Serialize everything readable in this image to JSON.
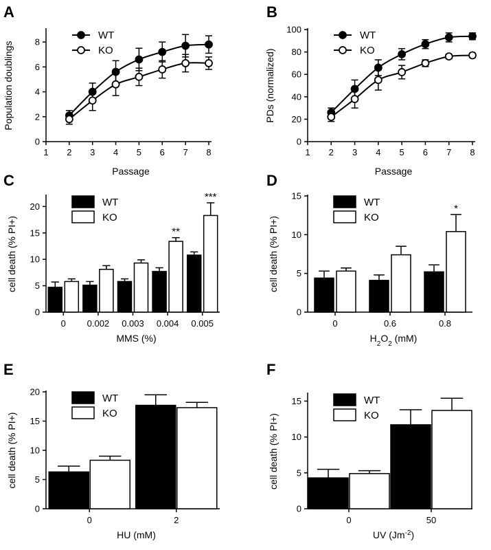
{
  "figure": {
    "panels": [
      "A",
      "B",
      "C",
      "D",
      "E",
      "F"
    ]
  },
  "chart_data": [
    {
      "panel": "A",
      "type": "line",
      "xlabel": "Passage",
      "ylabel": "Population doublings",
      "xlim": [
        1,
        8
      ],
      "ylim": [
        0,
        9
      ],
      "xticks": [
        1,
        2,
        3,
        4,
        5,
        6,
        7,
        8
      ],
      "yticks": [
        0,
        2,
        4,
        6,
        8
      ],
      "legend": "top-left",
      "x": [
        2,
        3,
        4,
        5,
        6,
        7,
        8
      ],
      "series": [
        {
          "name": "WT",
          "marker": "filled",
          "values": [
            2.1,
            4.0,
            5.6,
            6.6,
            7.2,
            7.7,
            7.8
          ],
          "errors": [
            0.4,
            0.7,
            0.9,
            0.9,
            0.8,
            0.9,
            0.7
          ]
        },
        {
          "name": "KO",
          "marker": "open",
          "values": [
            1.8,
            3.3,
            4.6,
            5.2,
            5.8,
            6.3,
            6.3
          ],
          "errors": [
            0.4,
            0.8,
            0.9,
            0.7,
            0.7,
            0.7,
            0.5
          ]
        }
      ]
    },
    {
      "panel": "B",
      "type": "line",
      "xlabel": "Passage",
      "ylabel": "PDs (normalized)",
      "xlim": [
        1,
        8
      ],
      "ylim": [
        0,
        100
      ],
      "xticks": [
        1,
        2,
        3,
        4,
        5,
        6,
        7,
        8
      ],
      "yticks": [
        0,
        20,
        40,
        60,
        80,
        100
      ],
      "legend": "top-left",
      "x": [
        2,
        3,
        4,
        5,
        6,
        7,
        8
      ],
      "series": [
        {
          "name": "WT",
          "marker": "filled",
          "values": [
            26,
            47,
            66,
            78,
            87,
            93,
            94
          ],
          "errors": [
            4,
            8,
            7,
            5,
            4,
            4,
            3
          ]
        },
        {
          "name": "KO",
          "marker": "open",
          "values": [
            22,
            38,
            55,
            62,
            70,
            76,
            77
          ],
          "errors": [
            4,
            8,
            9,
            6,
            3,
            2,
            2
          ]
        }
      ]
    },
    {
      "panel": "C",
      "type": "bar",
      "xlabel": "MMS (%)",
      "ylabel": "cell death (% PI+)",
      "ylim": [
        0,
        22
      ],
      "yticks": [
        0,
        5,
        10,
        15,
        20
      ],
      "legend": "top-left",
      "categories": [
        "0",
        "0.002",
        "0.003",
        "0.004",
        "0.005"
      ],
      "series": [
        {
          "name": "WT",
          "color": "#000000",
          "values": [
            4.7,
            5.1,
            5.8,
            7.7,
            10.8
          ],
          "errors": [
            1.0,
            0.7,
            0.5,
            0.7,
            0.6
          ]
        },
        {
          "name": "KO",
          "color": "#ffffff",
          "values": [
            5.8,
            8.1,
            9.3,
            13.4,
            18.3
          ],
          "errors": [
            0.5,
            0.7,
            0.6,
            0.7,
            2.4
          ]
        }
      ],
      "annotations": [
        "",
        "",
        "",
        "**",
        "***"
      ]
    },
    {
      "panel": "D",
      "type": "bar",
      "xlabel": "H2O2 (mM)",
      "ylabel": "cell death (% PI+)",
      "ylim": [
        0,
        15
      ],
      "yticks": [
        0,
        5,
        10,
        15
      ],
      "legend": "top-left",
      "categories": [
        "0",
        "0.6",
        "0.8"
      ],
      "series": [
        {
          "name": "WT",
          "color": "#000000",
          "values": [
            4.4,
            4.1,
            5.2
          ],
          "errors": [
            0.9,
            0.7,
            0.9
          ]
        },
        {
          "name": "KO",
          "color": "#ffffff",
          "values": [
            5.3,
            7.4,
            10.4
          ],
          "errors": [
            0.4,
            1.1,
            2.2
          ]
        }
      ],
      "annotations": [
        "",
        "",
        "*"
      ]
    },
    {
      "panel": "E",
      "type": "bar",
      "xlabel": "HU (mM)",
      "ylabel": "cell death (% PI+)",
      "ylim": [
        0,
        20
      ],
      "yticks": [
        0,
        5,
        10,
        15,
        20
      ],
      "legend": "top-left",
      "categories": [
        "0",
        "2"
      ],
      "series": [
        {
          "name": "WT",
          "color": "#000000",
          "values": [
            6.3,
            17.7
          ],
          "errors": [
            1.0,
            1.8
          ]
        },
        {
          "name": "KO",
          "color": "#ffffff",
          "values": [
            8.3,
            17.3
          ],
          "errors": [
            0.7,
            0.9
          ]
        }
      ]
    },
    {
      "panel": "F",
      "type": "bar",
      "xlabel": "UV (Jm-2)",
      "ylabel": "cell death (% PI+)",
      "ylim": [
        0,
        16
      ],
      "yticks": [
        0,
        5,
        10,
        15
      ],
      "legend": "top-left",
      "categories": [
        "0",
        "50"
      ],
      "series": [
        {
          "name": "WT",
          "color": "#000000",
          "values": [
            4.3,
            11.7
          ],
          "errors": [
            1.2,
            2.1
          ]
        },
        {
          "name": "KO",
          "color": "#ffffff",
          "values": [
            4.9,
            13.7
          ],
          "errors": [
            0.4,
            1.7
          ]
        }
      ]
    }
  ]
}
